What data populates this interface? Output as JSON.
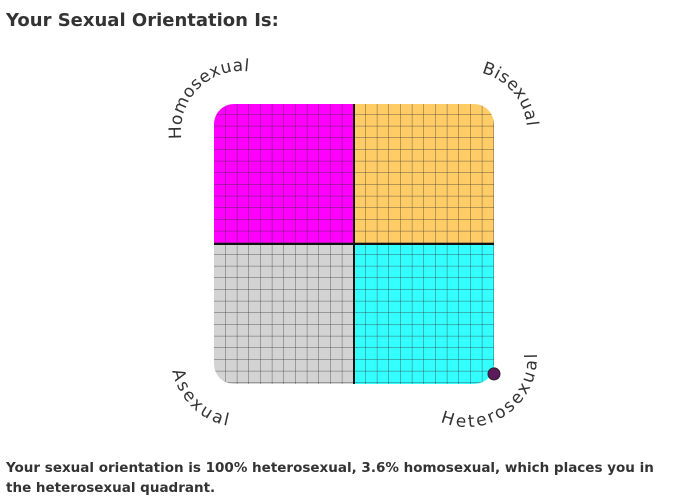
{
  "title": "Your Sexual Orientation Is:",
  "chart_data": {
    "type": "scatter",
    "quadrants": [
      {
        "label": "Homosexual",
        "color": "#ff00ff"
      },
      {
        "label": "Bisexual",
        "color": "#ffcc66"
      },
      {
        "label": "Asexual",
        "color": "#d3d3d3"
      },
      {
        "label": "Heterosexual",
        "color": "#33ffff"
      }
    ],
    "x": [
      100
    ],
    "values": [
      3.6
    ],
    "xlim": [
      0,
      100
    ],
    "ylim": [
      0,
      100
    ],
    "point_color": "#5c1a5c"
  },
  "result_text": "Your sexual orientation is 100% heterosexual, 3.6% homosexual, which places you in the heterosexual quadrant."
}
